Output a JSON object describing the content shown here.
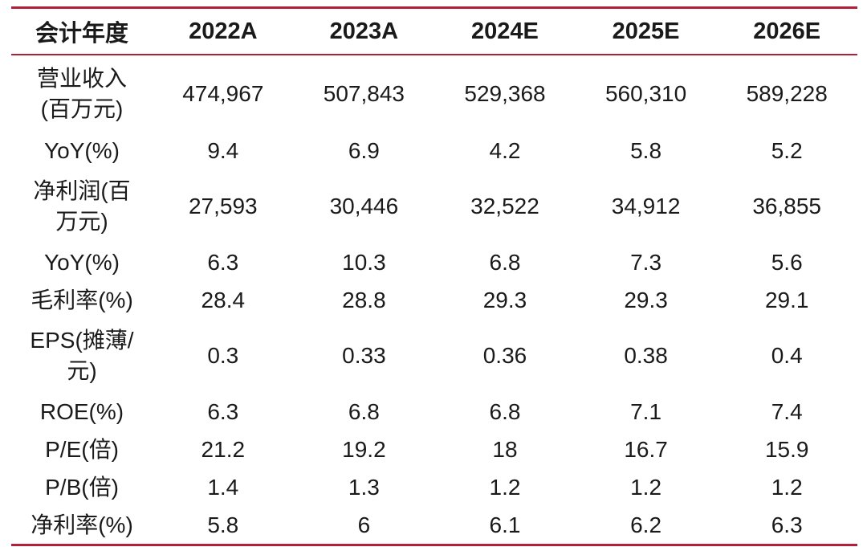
{
  "header": [
    "会计年度",
    "2022A",
    "2023A",
    "2024E",
    "2025E",
    "2026E"
  ],
  "rows": [
    {
      "label": [
        "营业收入",
        "(百万元)"
      ],
      "values": [
        "474,967",
        "507,843",
        "529,368",
        "560,310",
        "589,228"
      ]
    },
    {
      "label": [
        "YoY(%)"
      ],
      "values": [
        "9.4",
        "6.9",
        "4.2",
        "5.8",
        "5.2"
      ]
    },
    {
      "label": [
        "净利润(百",
        "万元)"
      ],
      "values": [
        "27,593",
        "30,446",
        "32,522",
        "34,912",
        "36,855"
      ]
    },
    {
      "label": [
        "YoY(%)"
      ],
      "values": [
        "6.3",
        "10.3",
        "6.8",
        "7.3",
        "5.6"
      ]
    },
    {
      "label": [
        "毛利率(%)"
      ],
      "values": [
        "28.4",
        "28.8",
        "29.3",
        "29.3",
        "29.1"
      ]
    },
    {
      "label": [
        "EPS(摊薄/",
        "元)"
      ],
      "values": [
        "0.3",
        "0.33",
        "0.36",
        "0.38",
        "0.4"
      ]
    },
    {
      "label": [
        "ROE(%)"
      ],
      "values": [
        "6.3",
        "6.8",
        "6.8",
        "7.1",
        "7.4"
      ]
    },
    {
      "label": [
        "P/E(倍)"
      ],
      "values": [
        "21.2",
        "19.2",
        "18",
        "16.7",
        "15.9"
      ]
    },
    {
      "label": [
        "P/B(倍)"
      ],
      "values": [
        "1.4",
        "1.3",
        "1.2",
        "1.2",
        "1.2"
      ]
    },
    {
      "label": [
        "净利率(%)"
      ],
      "values": [
        "5.8",
        "6",
        "6.1",
        "6.2",
        "6.3"
      ]
    }
  ],
  "colors": {
    "rule": "#b21f36",
    "text": "#1a1a1a"
  }
}
